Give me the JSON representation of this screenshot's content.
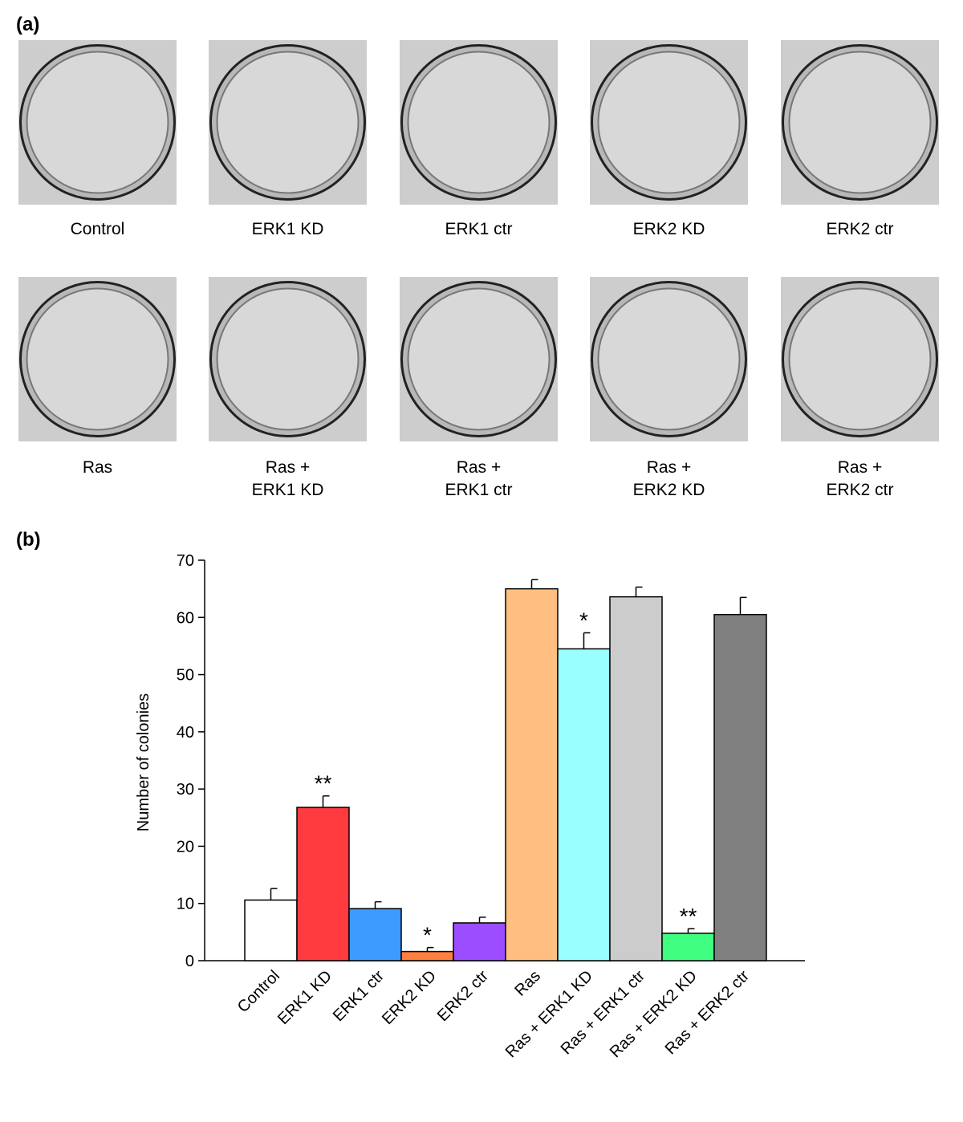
{
  "panel_a": {
    "label": "(a)",
    "dishes": [
      {
        "lines": [
          "Control"
        ]
      },
      {
        "lines": [
          "ERK1 KD"
        ]
      },
      {
        "lines": [
          "ERK1 ctr"
        ]
      },
      {
        "lines": [
          "ERK2 KD"
        ]
      },
      {
        "lines": [
          "ERK2 ctr"
        ]
      },
      {
        "lines": [
          "Ras"
        ]
      },
      {
        "lines": [
          "Ras +",
          "ERK1 KD"
        ]
      },
      {
        "lines": [
          "Ras +",
          "ERK1 ctr"
        ]
      },
      {
        "lines": [
          "Ras +",
          "ERK2 KD"
        ]
      },
      {
        "lines": [
          "Ras +",
          "ERK2 ctr"
        ]
      }
    ]
  },
  "chart_data": {
    "type": "bar",
    "label": "(b)",
    "y_label": "Number of colonies",
    "categories": [
      "Control",
      "ERK1 KD",
      "ERK1 ctr",
      "ERK2 KD",
      "ERK2 ctr",
      "Ras",
      "Ras + ERK1 KD",
      "Ras + ERK1 ctr",
      "Ras + ERK2 KD",
      "Ras + ERK2 ctr"
    ],
    "values": [
      10.6,
      26.8,
      9.1,
      1.6,
      6.6,
      65,
      54.5,
      63.6,
      4.8,
      60.5
    ],
    "errors": [
      2.0,
      2.0,
      1.2,
      0.7,
      1.0,
      1.6,
      2.8,
      1.7,
      0.8,
      3.0
    ],
    "colors": [
      "#ffffff",
      "#ff3b3f",
      "#3d9bff",
      "#ff7f3f",
      "#9b4dff",
      "#ffbf80",
      "#99ffff",
      "#cccccc",
      "#40ff80",
      "#808080"
    ],
    "significance": [
      null,
      "**",
      null,
      "*",
      null,
      null,
      "*",
      null,
      "**",
      null
    ],
    "ylim": [
      0,
      70
    ],
    "yticks": [
      0,
      10,
      20,
      30,
      40,
      50,
      60,
      70
    ],
    "grid": false
  }
}
